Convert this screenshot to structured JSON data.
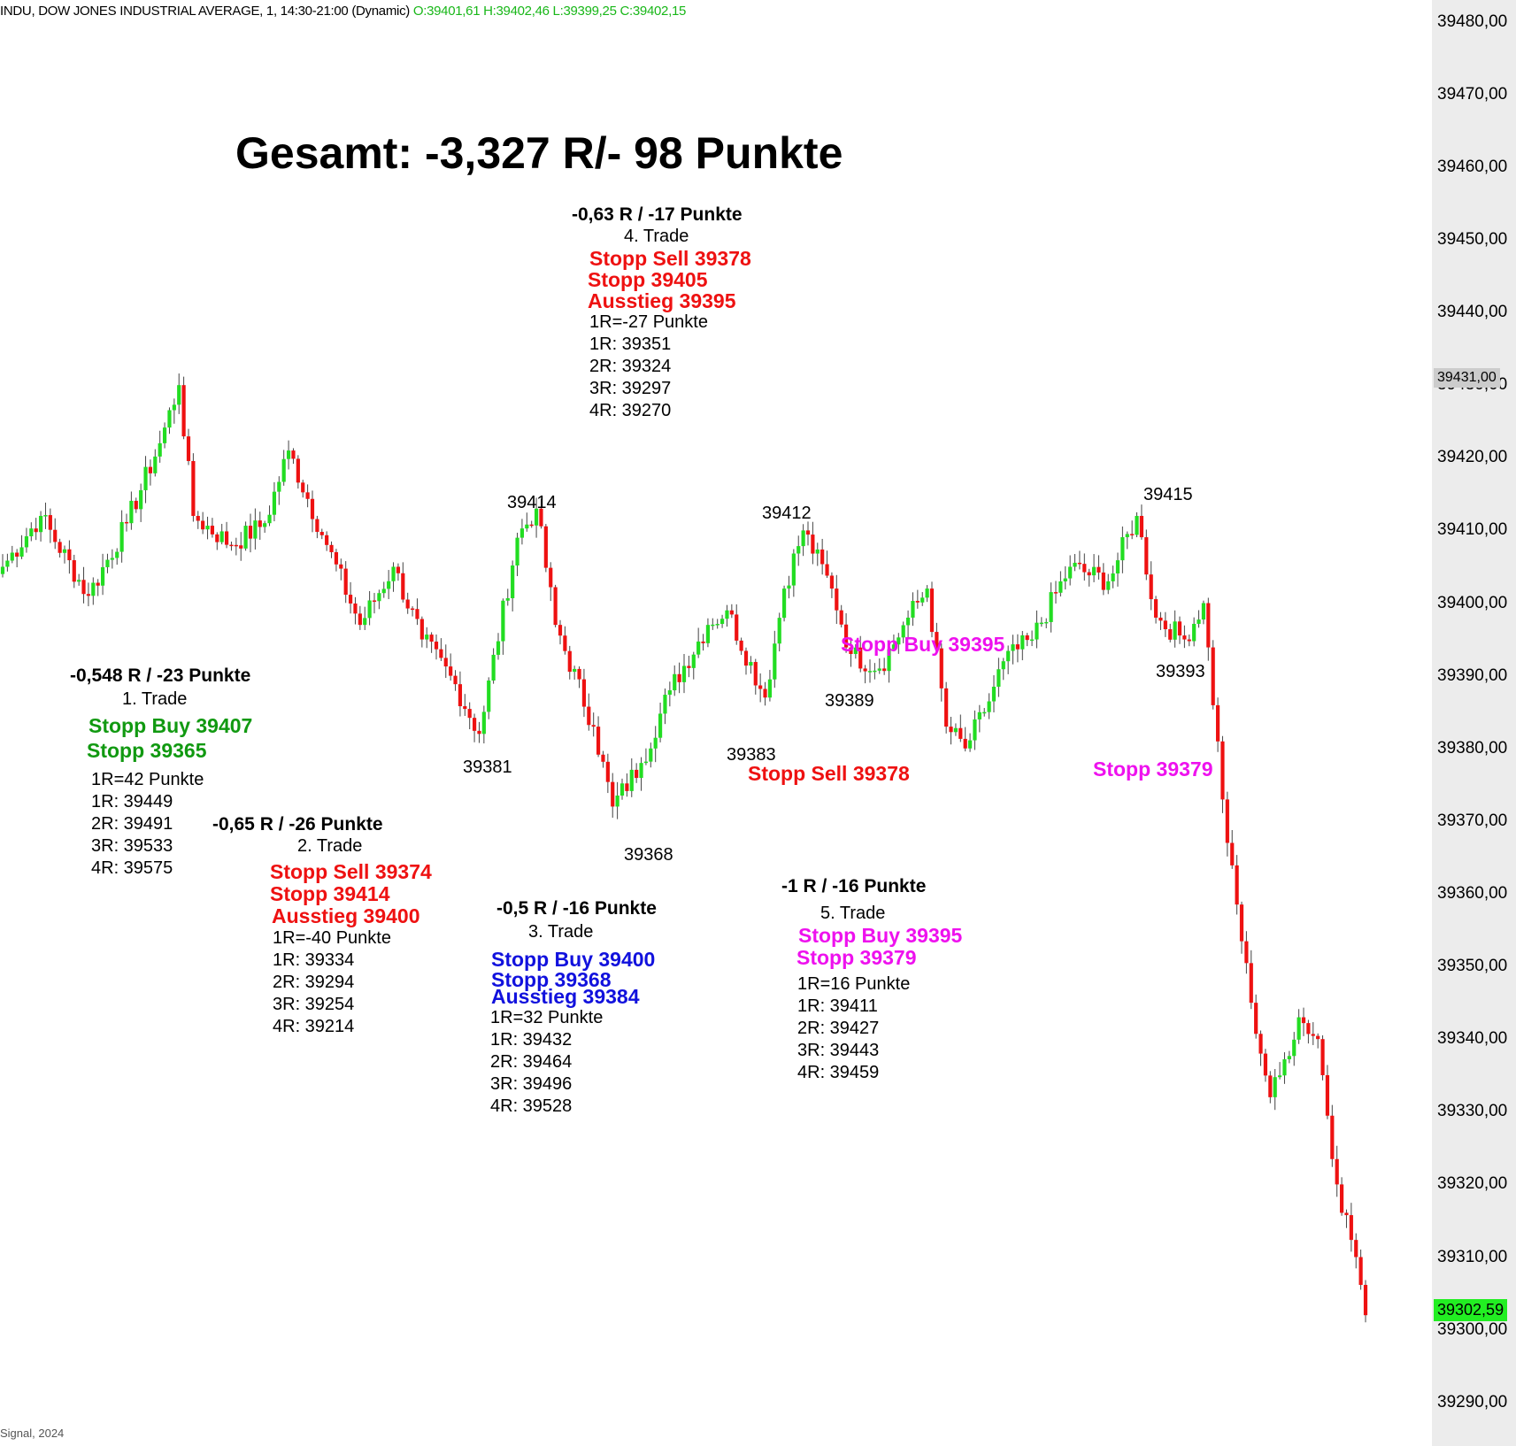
{
  "header": {
    "instrument": "INDU, DOW JONES INDUSTRIAL AVERAGE, 1, 14:30-21:00 (Dynamic)",
    "ohlc": "O:39401,61 H:39402,46 L:39399,25 C:39402,15"
  },
  "footer": {
    "text": "Signal, 2024"
  },
  "colors": {
    "up": "#22dd22",
    "down": "#ee1111",
    "wick": "#444444",
    "green": "#119911",
    "red": "#ee1111",
    "blue": "#1111dd",
    "magenta": "#ee11ee"
  },
  "chart_data": {
    "type": "candlestick",
    "ylim": [
      39284,
      39483
    ],
    "yticks": [
      "39480,00",
      "39470,00",
      "39460,00",
      "39450,00",
      "39440,00",
      "39430,00",
      "39420,00",
      "39410,00",
      "39400,00",
      "39390,00",
      "39380,00",
      "39370,00",
      "39360,00",
      "39350,00",
      "39340,00",
      "39330,00",
      "39320,00",
      "39310,00",
      "39300,00",
      "39290,00"
    ],
    "last_close_label": "39431,00",
    "current_price_label": "39302,59",
    "last_close": 39431,
    "current_price": 39302.59,
    "title": "Gesamt: -3,327 R/- 98 Punkte",
    "price_labels": [
      {
        "text": "39414",
        "value": 39414
      },
      {
        "text": "39381",
        "value": 39381
      },
      {
        "text": "39368",
        "value": 39368
      },
      {
        "text": "39412",
        "value": 39412
      },
      {
        "text": "39383",
        "value": 39383
      },
      {
        "text": "39389",
        "value": 39389
      },
      {
        "text": "39415",
        "value": 39415
      },
      {
        "text": "39393",
        "value": 39393
      }
    ],
    "trades": [
      {
        "result": "-0,548 R / -23 Punkte",
        "name": "1. Trade",
        "signals": [
          "Stopp Buy 39407",
          "Stopp 39365"
        ],
        "levels": [
          "1R=42 Punkte",
          "1R: 39449",
          "2R: 39491",
          "3R: 39533",
          "4R: 39575"
        ]
      },
      {
        "result": "-0,65 R / -26 Punkte",
        "name": "2. Trade",
        "signals": [
          "Stopp Sell 39374",
          "Stopp 39414",
          "Ausstieg 39400"
        ],
        "levels": [
          "1R=-40 Punkte",
          "1R: 39334",
          "2R: 39294",
          "3R: 39254",
          "4R: 39214"
        ]
      },
      {
        "result": "-0,5 R / -16 Punkte",
        "name": "3. Trade",
        "signals": [
          "Stopp Buy 39400",
          "Stopp 39368",
          "Ausstieg 39384"
        ],
        "levels": [
          "1R=32 Punkte",
          "1R: 39432",
          "2R: 39464",
          "3R: 39496",
          "4R: 39528"
        ]
      },
      {
        "result": "-0,63 R / -17 Punkte",
        "name": "4. Trade",
        "signals": [
          "Stopp Sell 39378",
          "Stopp 39405",
          "Ausstieg 39395"
        ],
        "levels": [
          "1R=-27 Punkte",
          "1R: 39351",
          "2R: 39324",
          "3R: 39297",
          "4R: 39270"
        ]
      },
      {
        "result": "-1 R / -16 Punkte",
        "name": "5. Trade",
        "signals": [
          "Stopp Buy 39395",
          "Stopp 39379"
        ],
        "levels": [
          "1R=16 Punkte",
          "1R: 39411",
          "2R: 39427",
          "3R: 39443",
          "4R: 39459"
        ]
      }
    ],
    "chart_signals": [
      {
        "text": "Stopp Buy 39395"
      },
      {
        "text": "Stopp Sell 39378"
      },
      {
        "text": "Stopp 39379"
      }
    ],
    "anchors": [
      [
        0,
        39405
      ],
      [
        8,
        39412
      ],
      [
        18,
        39401
      ],
      [
        26,
        39411
      ],
      [
        33,
        39422
      ],
      [
        37,
        39430
      ],
      [
        40,
        39412
      ],
      [
        48,
        39408
      ],
      [
        55,
        39411
      ],
      [
        60,
        39421
      ],
      [
        68,
        39408
      ],
      [
        75,
        39397
      ],
      [
        82,
        39405
      ],
      [
        88,
        39395
      ],
      [
        94,
        39390
      ],
      [
        100,
        39382
      ],
      [
        108,
        39409
      ],
      [
        112,
        39413
      ],
      [
        116,
        39397
      ],
      [
        124,
        39383
      ],
      [
        128,
        39372
      ],
      [
        134,
        39378
      ],
      [
        140,
        39388
      ],
      [
        148,
        39397
      ],
      [
        152,
        39399
      ],
      [
        160,
        39387
      ],
      [
        164,
        39402
      ],
      [
        168,
        39410
      ],
      [
        174,
        39402
      ],
      [
        178,
        39393
      ],
      [
        184,
        39391
      ],
      [
        190,
        39398
      ],
      [
        194,
        39402
      ],
      [
        198,
        39383
      ],
      [
        202,
        39380
      ],
      [
        206,
        39385
      ],
      [
        210,
        39392
      ],
      [
        216,
        39395
      ],
      [
        224,
        39405
      ],
      [
        232,
        39403
      ],
      [
        238,
        39412
      ],
      [
        242,
        39398
      ],
      [
        248,
        39395
      ],
      [
        252,
        39400
      ],
      [
        257,
        39367
      ],
      [
        262,
        39345
      ],
      [
        266,
        39332
      ],
      [
        268,
        39335
      ],
      [
        272,
        39343
      ],
      [
        276,
        39340
      ],
      [
        280,
        39320
      ],
      [
        284,
        39310
      ],
      [
        286,
        39302
      ]
    ]
  }
}
